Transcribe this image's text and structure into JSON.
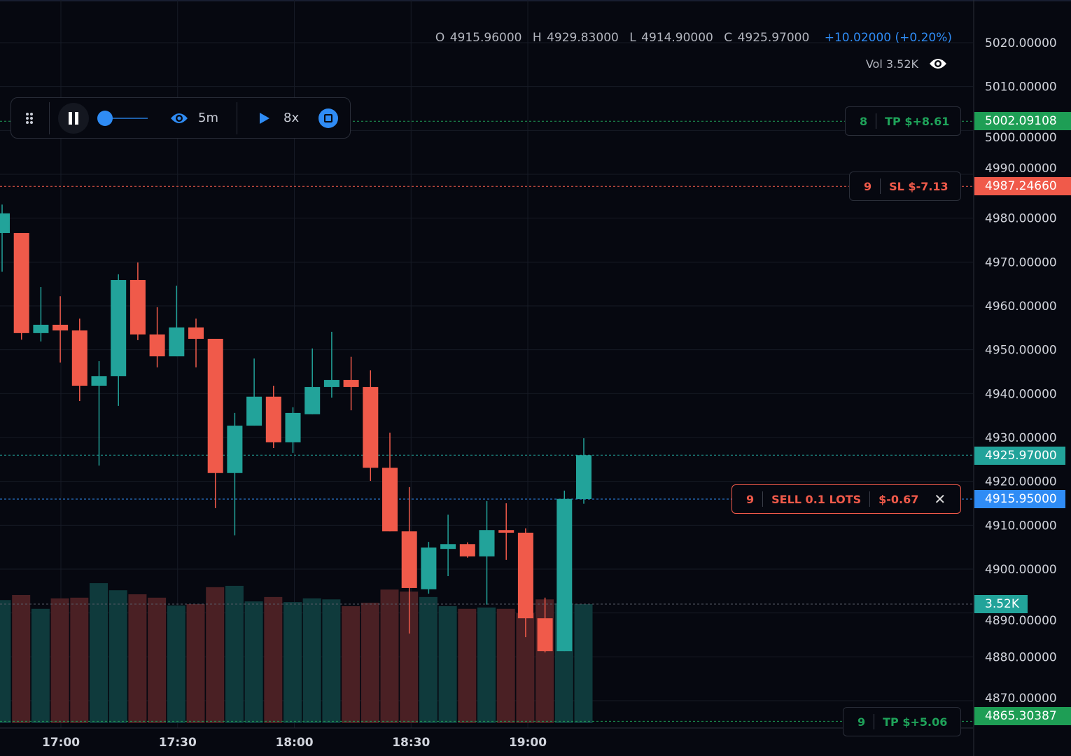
{
  "colors": {
    "up": "#22a39a",
    "down": "#f05a4a",
    "up_vol": "#0f3a3c",
    "down_vol": "#4a2024",
    "accent": "#2f8cf5",
    "tp": "#1e9e55",
    "grid": "#161a25"
  },
  "ohlc": {
    "o_label": "O",
    "o": "4915.96000",
    "h_label": "H",
    "h": "4929.83000",
    "l_label": "L",
    "l": "4914.90000",
    "c_label": "C",
    "c": "4925.97000",
    "change": "+10.02000 (+0.20%)"
  },
  "volume": {
    "label": "Vol",
    "value": "3.52K",
    "icon": "eye-icon"
  },
  "replay_toolbar": {
    "drag_icon": "grip-icon",
    "pause_icon": "pause-icon",
    "progress": 0.0,
    "interval_icon": "eye-icon",
    "interval": "5m",
    "play_icon": "play-icon",
    "speed": "8x",
    "stop_icon": "stop-icon"
  },
  "orders": {
    "tp1": {
      "id": "8",
      "label": "TP $+8.61",
      "price": "5002.09108",
      "value": 5002.09108
    },
    "sl": {
      "id": "9",
      "label": "SL $-7.13",
      "price": "4987.24660",
      "value": 4987.2466
    },
    "position": {
      "id": "9",
      "label": "SELL 0.1 LOTS",
      "pnl": "$-0.67",
      "close_icon": "close-icon",
      "price": "4915.95000",
      "value": 4915.95
    },
    "tp2": {
      "id": "9",
      "label": "TP $+5.06",
      "price": "4865.30387",
      "value": 4865.30387
    }
  },
  "last_price": {
    "price": "4925.97000",
    "value": 4925.97
  },
  "volume_axis": {
    "label": "3.52K"
  },
  "price_axis": {
    "ticks": [
      "5020.00000",
      "5010.00000",
      "5000.00000",
      "4990.00000",
      "4980.00000",
      "4970.00000",
      "4960.00000",
      "4950.00000",
      "4940.00000",
      "4930.00000",
      "4920.00000",
      "4910.00000",
      "4900.00000",
      "4890.00000",
      "4880.00000",
      "4870.00000"
    ]
  },
  "time_axis": {
    "ticks": [
      "17:00",
      "17:30",
      "18:00",
      "18:30",
      "19:00"
    ]
  },
  "chart_data": {
    "type": "candlestick",
    "interval": "5m",
    "candles": [
      [
        4976.6,
        4983.1,
        4967.8,
        4981.1
      ],
      [
        4976.6,
        4976.6,
        4952.3,
        4953.8
      ],
      [
        4953.8,
        4964.3,
        4951.9,
        4955.7
      ],
      [
        4955.7,
        4962.2,
        4947.1,
        4954.4
      ],
      [
        4954.4,
        4957.1,
        4938.3,
        4941.8
      ],
      [
        4941.8,
        4947.4,
        4923.6,
        4944.0
      ],
      [
        4944.0,
        4967.2,
        4937.2,
        4965.9
      ],
      [
        4965.9,
        4969.9,
        4952.2,
        4953.5
      ],
      [
        4953.5,
        4959.7,
        4946.0,
        4948.5
      ],
      [
        4948.5,
        4964.6,
        4948.5,
        4955.1
      ],
      [
        4955.1,
        4957.1,
        4946.0,
        4952.5
      ],
      [
        4952.5,
        4952.5,
        4913.9,
        4921.9
      ],
      [
        4921.9,
        4935.6,
        4907.7,
        4932.7
      ],
      [
        4932.7,
        4948.0,
        4932.7,
        4939.3
      ],
      [
        4939.3,
        4941.8,
        4927.6,
        4928.9
      ],
      [
        4928.9,
        4936.9,
        4926.5,
        4935.6
      ],
      [
        4935.3,
        4950.3,
        4935.3,
        4941.5
      ],
      [
        4941.5,
        4954.1,
        4939.1,
        4943.1
      ],
      [
        4943.1,
        4948.4,
        4936.2,
        4941.5
      ],
      [
        4941.5,
        4945.3,
        4920.1,
        4923.1
      ],
      [
        4923.1,
        4931.1,
        4908.6,
        4908.6
      ],
      [
        4908.6,
        4918.7,
        4885.3,
        4895.7
      ],
      [
        4895.4,
        4906.2,
        4894.4,
        4904.9
      ],
      [
        4904.6,
        4912.4,
        4898.4,
        4905.7
      ],
      [
        4905.7,
        4906.1,
        4902.6,
        4902.9
      ],
      [
        4902.9,
        4915.5,
        4891.9,
        4908.9
      ],
      [
        4908.9,
        4915.0,
        4902.1,
        4908.3
      ],
      [
        4908.3,
        4909.3,
        4884.5,
        4888.8
      ],
      [
        4888.8,
        4893.5,
        4881.0,
        4881.3
      ],
      [
        4881.3,
        4917.9,
        4881.3,
        4916.0
      ],
      [
        4915.96,
        4929.83,
        4914.9,
        4925.97
      ]
    ],
    "volumes_k": [
      3.64,
      3.79,
      3.38,
      3.69,
      3.71,
      4.14,
      3.93,
      3.81,
      3.71,
      3.48,
      3.52,
      4.02,
      4.06,
      3.6,
      3.73,
      3.58,
      3.69,
      3.66,
      3.46,
      3.56,
      3.95,
      3.89,
      3.73,
      3.46,
      3.38,
      3.42,
      3.38,
      3.25,
      3.66,
      3.54,
      3.52
    ],
    "ylim": [
      4866,
      5024
    ]
  }
}
